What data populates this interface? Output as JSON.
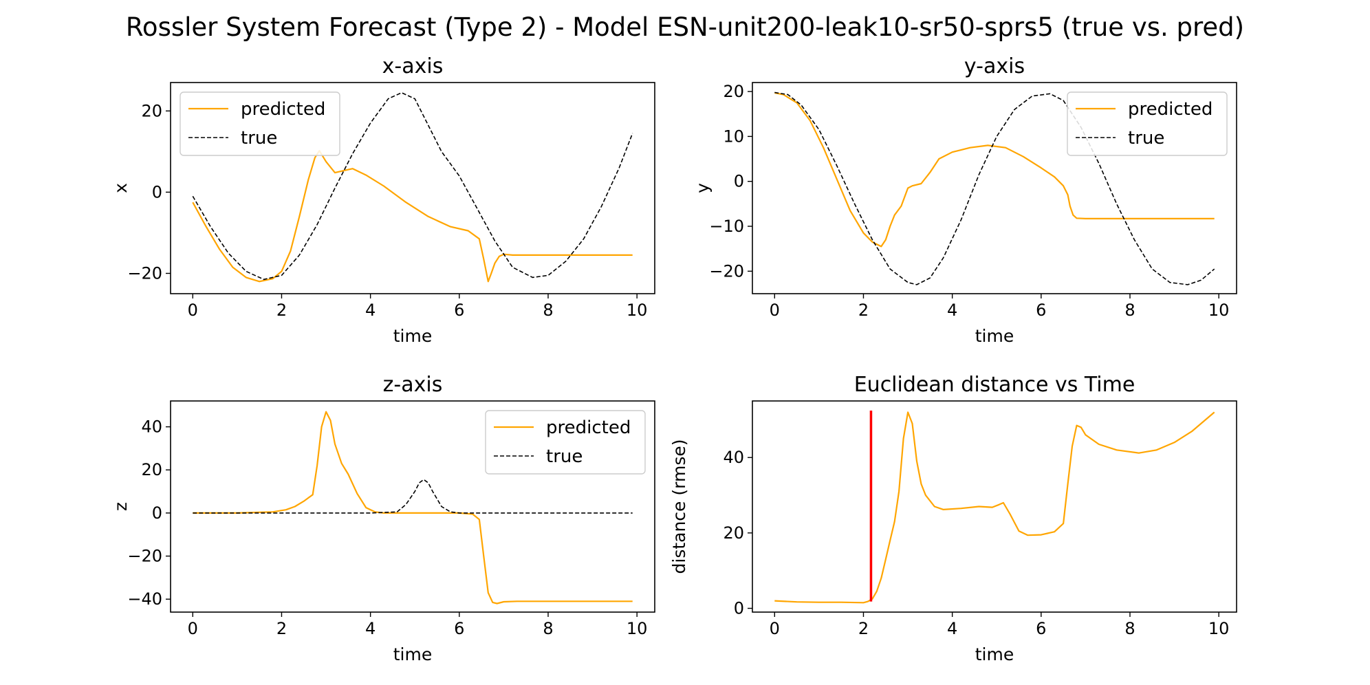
{
  "figure": {
    "title": "Rossler System Forecast (Type 2) - Model ESN-unit200-leak10-sr50-sprs5 (true vs. pred)"
  },
  "colors": {
    "predicted": "#FFA500",
    "true": "#000000",
    "threshold": "#FF0000"
  },
  "chart_data": [
    {
      "type": "line",
      "title": "x-axis",
      "xlabel": "time",
      "ylabel": "x",
      "xlim": [
        -0.5,
        10.4
      ],
      "ylim": [
        -25,
        27
      ],
      "xticks": [
        0,
        2,
        4,
        6,
        8,
        10
      ],
      "yticks": [
        -20,
        0,
        20
      ],
      "legend": {
        "position": "upper left"
      },
      "series": [
        {
          "name": "predicted",
          "color": "#FFA500",
          "style": "solid",
          "x": [
            0,
            0.3,
            0.6,
            0.9,
            1.2,
            1.5,
            1.8,
            2.0,
            2.2,
            2.4,
            2.6,
            2.75,
            2.85,
            3.0,
            3.2,
            3.4,
            3.6,
            3.9,
            4.3,
            4.8,
            5.3,
            5.8,
            6.2,
            6.45,
            6.55,
            6.65,
            6.72,
            6.8,
            6.9,
            7.0,
            7.2,
            7.6,
            8.0,
            8.5,
            9.0,
            9.5,
            9.9
          ],
          "y": [
            -2.5,
            -8.5,
            -14,
            -18.5,
            -21,
            -22,
            -21.3,
            -19.5,
            -14.5,
            -6,
            3,
            8.5,
            10.2,
            7.5,
            4.8,
            5.3,
            5.8,
            4.2,
            1.5,
            -2.5,
            -6,
            -8.5,
            -9.5,
            -11.5,
            -16.5,
            -22,
            -20,
            -17.5,
            -15.8,
            -15.3,
            -15.5,
            -15.5,
            -15.5,
            -15.5,
            -15.5,
            -15.5,
            -15.5
          ]
        },
        {
          "name": "true",
          "color": "#000000",
          "style": "dashed",
          "x": [
            0,
            0.4,
            0.8,
            1.2,
            1.6,
            2.0,
            2.4,
            2.8,
            3.2,
            3.6,
            4.0,
            4.4,
            4.7,
            5.0,
            5.3,
            5.6,
            6.0,
            6.4,
            6.8,
            7.2,
            7.65,
            8.0,
            8.4,
            8.8,
            9.2,
            9.6,
            9.9
          ],
          "y": [
            -1,
            -8.5,
            -15,
            -19.5,
            -21.5,
            -20.5,
            -15.5,
            -8,
            1,
            9.5,
            17,
            23,
            24.5,
            23,
            16.5,
            10,
            4,
            -4,
            -12,
            -18.5,
            -21,
            -20.5,
            -17,
            -11.5,
            -3.5,
            6,
            14.5
          ]
        }
      ]
    },
    {
      "type": "line",
      "title": "y-axis",
      "xlabel": "time",
      "ylabel": "y",
      "xlim": [
        -0.5,
        10.4
      ],
      "ylim": [
        -25,
        22
      ],
      "xticks": [
        0,
        2,
        4,
        6,
        8,
        10
      ],
      "yticks": [
        -20,
        -10,
        0,
        10,
        20
      ],
      "legend": {
        "position": "upper right"
      },
      "series": [
        {
          "name": "predicted",
          "color": "#FFA500",
          "style": "solid",
          "x": [
            0,
            0.2,
            0.5,
            0.8,
            1.1,
            1.4,
            1.7,
            2.0,
            2.2,
            2.4,
            2.5,
            2.6,
            2.7,
            2.85,
            3.0,
            3.1,
            3.3,
            3.5,
            3.7,
            4.0,
            4.4,
            4.8,
            5.2,
            5.6,
            6.0,
            6.3,
            6.5,
            6.6,
            6.65,
            6.72,
            6.8,
            7.0,
            7.5,
            8.0,
            8.5,
            9.0,
            9.5,
            9.9
          ],
          "y": [
            19.7,
            19.3,
            17.5,
            13.5,
            7.5,
            0.5,
            -6.5,
            -11.5,
            -13.5,
            -14.5,
            -13,
            -10,
            -7.5,
            -5.5,
            -1.5,
            -1,
            -0.5,
            2,
            5,
            6.5,
            7.5,
            8,
            7.5,
            5.5,
            3,
            1,
            -1,
            -3,
            -5.5,
            -7.5,
            -8.2,
            -8.3,
            -8.3,
            -8.3,
            -8.3,
            -8.3,
            -8.3,
            -8.3
          ]
        },
        {
          "name": "true",
          "color": "#000000",
          "style": "dashed",
          "x": [
            0,
            0.3,
            0.6,
            1.0,
            1.4,
            1.8,
            2.2,
            2.6,
            3.0,
            3.2,
            3.5,
            3.8,
            4.2,
            4.6,
            5.0,
            5.4,
            5.8,
            6.2,
            6.5,
            6.9,
            7.3,
            7.7,
            8.1,
            8.5,
            8.9,
            9.3,
            9.6,
            9.9
          ],
          "y": [
            19.8,
            19.3,
            17,
            11.5,
            3.5,
            -5,
            -13,
            -19.5,
            -22.5,
            -23,
            -21.5,
            -17,
            -8.5,
            1.5,
            10,
            16,
            19,
            19.5,
            18,
            12,
            4,
            -5,
            -13,
            -19.5,
            -22.5,
            -23,
            -22,
            -19.5
          ]
        }
      ]
    },
    {
      "type": "line",
      "title": "z-axis",
      "xlabel": "time",
      "ylabel": "z",
      "xlim": [
        -0.5,
        10.4
      ],
      "ylim": [
        -46,
        52
      ],
      "xticks": [
        0,
        2,
        4,
        6,
        8,
        10
      ],
      "yticks": [
        -40,
        -20,
        0,
        20,
        40
      ],
      "legend": {
        "position": "upper right"
      },
      "series": [
        {
          "name": "predicted",
          "color": "#FFA500",
          "style": "solid",
          "x": [
            0,
            1.0,
            1.8,
            2.1,
            2.3,
            2.5,
            2.6,
            2.7,
            2.8,
            2.9,
            3.0,
            3.1,
            3.2,
            3.35,
            3.5,
            3.7,
            3.9,
            4.1,
            4.3,
            5.0,
            6.0,
            6.3,
            6.45,
            6.55,
            6.65,
            6.75,
            6.85,
            7.0,
            7.3,
            8.0,
            9.0,
            9.9
          ],
          "y": [
            0,
            0,
            0.5,
            1.5,
            3,
            5.5,
            7,
            8.5,
            22,
            40,
            47,
            43,
            32,
            23,
            18,
            9,
            2.5,
            0.5,
            0,
            0,
            0,
            -0.5,
            -3,
            -20,
            -37,
            -41.5,
            -42,
            -41.2,
            -41,
            -41,
            -41,
            -41
          ]
        },
        {
          "name": "true",
          "color": "#000000",
          "style": "dashed",
          "x": [
            0,
            2,
            4,
            4.6,
            4.8,
            5.0,
            5.1,
            5.2,
            5.3,
            5.4,
            5.6,
            5.8,
            6.0,
            8,
            9.9
          ],
          "y": [
            0,
            0,
            0,
            0.5,
            4,
            10,
            14,
            15.5,
            14,
            10,
            3,
            0.5,
            0,
            0,
            0
          ]
        }
      ]
    },
    {
      "type": "line",
      "title": "Euclidean distance vs Time",
      "xlabel": "time",
      "ylabel": "distance (rmse)",
      "xlim": [
        -0.5,
        10.4
      ],
      "ylim": [
        -1,
        55
      ],
      "xticks": [
        0,
        2,
        4,
        6,
        8,
        10
      ],
      "yticks": [
        0,
        20,
        40
      ],
      "threshold_x": 2.17,
      "series": [
        {
          "color": "#FFA500",
          "style": "solid",
          "x": [
            0,
            0.5,
            1.0,
            1.5,
            2.0,
            2.1,
            2.2,
            2.3,
            2.4,
            2.5,
            2.6,
            2.7,
            2.8,
            2.9,
            3.0,
            3.1,
            3.2,
            3.3,
            3.4,
            3.6,
            3.8,
            4.2,
            4.6,
            4.9,
            5.05,
            5.15,
            5.3,
            5.5,
            5.7,
            6.0,
            6.3,
            6.5,
            6.6,
            6.7,
            6.8,
            6.9,
            7.0,
            7.3,
            7.7,
            8.2,
            8.6,
            9.0,
            9.4,
            9.9
          ],
          "y": [
            2,
            1.7,
            1.6,
            1.6,
            1.5,
            1.8,
            2.5,
            4.5,
            8,
            13,
            18,
            23,
            31,
            45,
            52,
            49,
            39,
            33,
            30,
            27,
            26.2,
            26.5,
            27,
            26.8,
            27.5,
            28,
            25,
            20.5,
            19.4,
            19.5,
            20.3,
            22.5,
            33,
            43,
            48.5,
            48,
            46,
            43.5,
            42,
            41.2,
            42,
            44,
            47,
            52
          ]
        }
      ]
    }
  ]
}
